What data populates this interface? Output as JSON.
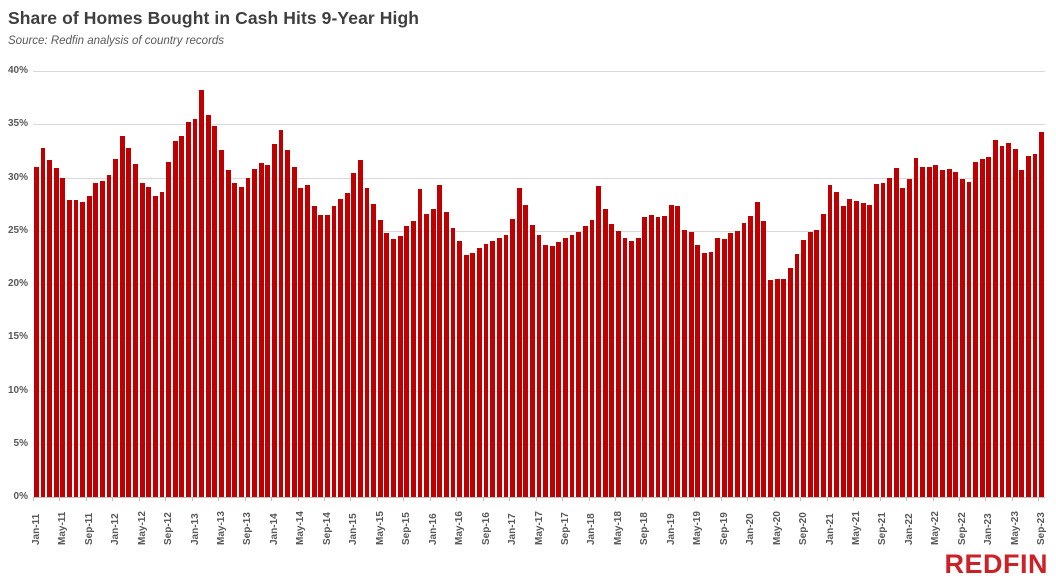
{
  "header": {
    "title": "Share of Homes Bought in Cash Hits 9-Year High",
    "subtitle": "Source: Redfin analysis of country records"
  },
  "branding": {
    "logo_text": "REDFIN",
    "logo_color": "#cd2128"
  },
  "colors": {
    "bar": "#c00000",
    "gridline": "#d9d9d9",
    "axis": "#bfbfbf",
    "text": "#595959",
    "title_text": "#3f3f3f"
  },
  "chart_data": {
    "type": "bar",
    "title": "Share of Homes Bought in Cash Hits 9-Year High",
    "subtitle": "Source: Redfin analysis of country records",
    "xlabel": "",
    "ylabel": "",
    "ylim": [
      0,
      40
    ],
    "grid": true,
    "legend": false,
    "y_tick_labels": [
      "0%",
      "5%",
      "10%",
      "15%",
      "20%",
      "25%",
      "30%",
      "35%",
      "40%"
    ],
    "x_tick_every": 4,
    "x_tick_labels": [
      "Jan-11",
      "May-11",
      "Sep-11",
      "Jan-12",
      "May-12",
      "Sep-12",
      "Jan-13",
      "May-13",
      "Sep-13",
      "Jan-14",
      "May-14",
      "Sep-14",
      "Jan-15",
      "May-15",
      "Sep-15",
      "Jan-16",
      "May-16",
      "Sep-16",
      "Jan-17",
      "May-17",
      "Sep-17",
      "Jan-18",
      "May-18",
      "Sep-18",
      "Jan-19",
      "May-19",
      "Sep-19",
      "Jan-20",
      "May-20",
      "Sep-20",
      "Jan-21",
      "May-21",
      "Sep-21",
      "Jan-22",
      "May-22",
      "Sep-22",
      "Jan-23",
      "May-23",
      "Sep-23"
    ],
    "categories": [
      "Jan-11",
      "Feb-11",
      "Mar-11",
      "Apr-11",
      "May-11",
      "Jun-11",
      "Jul-11",
      "Aug-11",
      "Sep-11",
      "Oct-11",
      "Nov-11",
      "Dec-11",
      "Jan-12",
      "Feb-12",
      "Mar-12",
      "Apr-12",
      "May-12",
      "Jun-12",
      "Jul-12",
      "Aug-12",
      "Sep-12",
      "Oct-12",
      "Nov-12",
      "Dec-12",
      "Jan-13",
      "Feb-13",
      "Mar-13",
      "Apr-13",
      "May-13",
      "Jun-13",
      "Jul-13",
      "Aug-13",
      "Sep-13",
      "Oct-13",
      "Nov-13",
      "Dec-13",
      "Jan-14",
      "Feb-14",
      "Mar-14",
      "Apr-14",
      "May-14",
      "Jun-14",
      "Jul-14",
      "Aug-14",
      "Sep-14",
      "Oct-14",
      "Nov-14",
      "Dec-14",
      "Jan-15",
      "Feb-15",
      "Mar-15",
      "Apr-15",
      "May-15",
      "Jun-15",
      "Jul-15",
      "Aug-15",
      "Sep-15",
      "Oct-15",
      "Nov-15",
      "Dec-15",
      "Jan-16",
      "Feb-16",
      "Mar-16",
      "Apr-16",
      "May-16",
      "Jun-16",
      "Jul-16",
      "Aug-16",
      "Sep-16",
      "Oct-16",
      "Nov-16",
      "Dec-16",
      "Jan-17",
      "Feb-17",
      "Mar-17",
      "Apr-17",
      "May-17",
      "Jun-17",
      "Jul-17",
      "Aug-17",
      "Sep-17",
      "Oct-17",
      "Nov-17",
      "Dec-17",
      "Jan-18",
      "Feb-18",
      "Mar-18",
      "Apr-18",
      "May-18",
      "Jun-18",
      "Jul-18",
      "Aug-18",
      "Sep-18",
      "Oct-18",
      "Nov-18",
      "Dec-18",
      "Jan-19",
      "Feb-19",
      "Mar-19",
      "Apr-19",
      "May-19",
      "Jun-19",
      "Jul-19",
      "Aug-19",
      "Sep-19",
      "Oct-19",
      "Nov-19",
      "Dec-19",
      "Jan-20",
      "Feb-20",
      "Mar-20",
      "Apr-20",
      "May-20",
      "Jun-20",
      "Jul-20",
      "Aug-20",
      "Sep-20",
      "Oct-20",
      "Nov-20",
      "Dec-20",
      "Jan-21",
      "Feb-21",
      "Mar-21",
      "Apr-21",
      "May-21",
      "Jun-21",
      "Jul-21",
      "Aug-21",
      "Sep-21",
      "Oct-21",
      "Nov-21",
      "Dec-21",
      "Jan-22",
      "Feb-22",
      "Mar-22",
      "Apr-22",
      "May-22",
      "Jun-22",
      "Jul-22",
      "Aug-22",
      "Sep-22",
      "Oct-22",
      "Nov-22",
      "Dec-22",
      "Jan-23",
      "Feb-23",
      "Mar-23",
      "Apr-23",
      "May-23",
      "Jun-23",
      "Jul-23",
      "Aug-23",
      "Sep-23"
    ],
    "values": [
      31.0,
      32.8,
      31.6,
      30.9,
      30.0,
      27.9,
      27.9,
      27.7,
      28.3,
      29.5,
      29.7,
      30.2,
      31.7,
      33.9,
      32.8,
      31.3,
      29.5,
      29.1,
      28.3,
      28.6,
      31.5,
      33.4,
      33.9,
      35.2,
      35.5,
      38.2,
      35.9,
      34.8,
      32.6,
      30.7,
      29.5,
      29.1,
      30.0,
      30.8,
      31.4,
      31.2,
      33.1,
      34.5,
      32.6,
      31.0,
      29.0,
      29.3,
      27.3,
      26.5,
      26.5,
      27.3,
      28.0,
      28.5,
      30.4,
      31.6,
      29.0,
      27.5,
      26.0,
      24.8,
      24.2,
      24.5,
      25.4,
      25.9,
      28.9,
      26.6,
      27.0,
      29.3,
      26.8,
      25.3,
      24.0,
      22.7,
      22.9,
      23.4,
      23.8,
      24.0,
      24.3,
      24.6,
      26.1,
      29.0,
      27.4,
      25.5,
      24.6,
      23.7,
      23.6,
      23.9,
      24.3,
      24.6,
      24.9,
      25.4,
      26.0,
      29.2,
      27.0,
      25.6,
      25.0,
      24.3,
      24.0,
      24.3,
      26.3,
      26.5,
      26.3,
      26.4,
      27.4,
      27.3,
      25.1,
      24.9,
      23.7,
      22.9,
      23.0,
      24.3,
      24.2,
      24.8,
      25.0,
      25.7,
      26.4,
      27.7,
      25.9,
      20.4,
      20.5,
      20.5,
      21.5,
      22.8,
      24.1,
      24.9,
      25.1,
      26.6,
      29.3,
      28.6,
      27.3,
      28.0,
      27.8,
      27.6,
      27.4,
      29.4,
      29.5,
      30.0,
      30.9,
      29.0,
      29.9,
      31.8,
      31.0,
      31.0,
      31.2,
      30.7,
      30.8,
      30.5,
      29.9,
      29.6,
      31.5,
      31.7,
      31.9,
      33.5,
      33.0,
      33.2,
      32.7,
      30.7,
      32.0,
      32.2,
      34.3
    ],
    "bar_color": "#c00000"
  }
}
